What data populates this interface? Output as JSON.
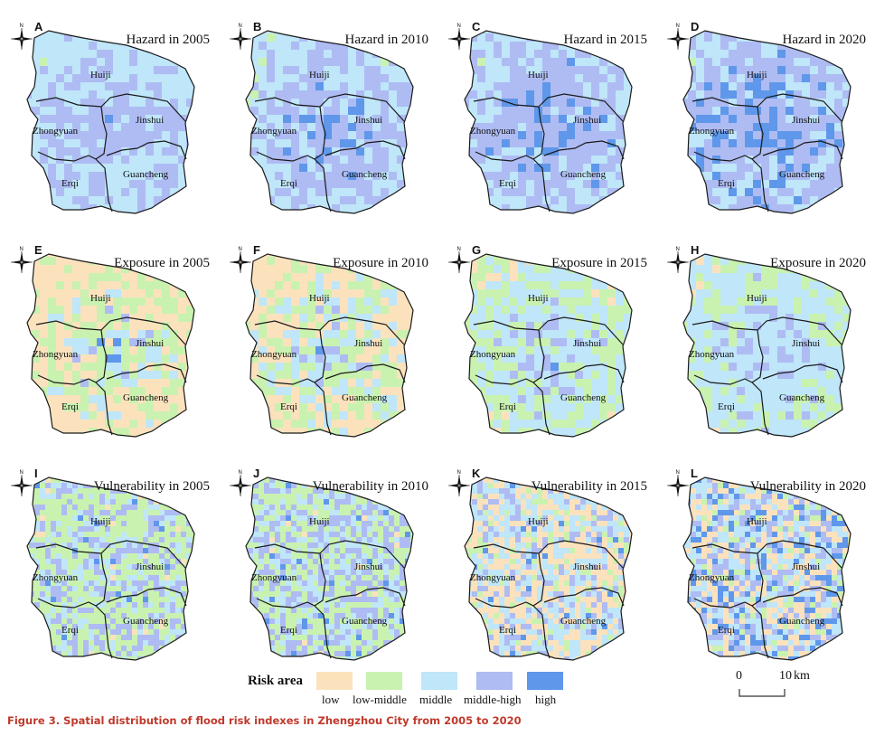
{
  "figure": {
    "caption": "Figure 3.  Spatial distribution of flood risk indexes in Zhengzhou City from 2005 to 2020",
    "north_label": "N",
    "districts": [
      "Huiji",
      "Jinshui",
      "Zhongyuan",
      "Guancheng",
      "Erqi"
    ],
    "panels": [
      {
        "letter": "A",
        "title": "Hazard in 2005",
        "mix": [
          0,
          0.03,
          0.45,
          0.37,
          0.15
        ]
      },
      {
        "letter": "B",
        "title": "Hazard in 2010",
        "mix": [
          0,
          0.08,
          0.35,
          0.35,
          0.22
        ]
      },
      {
        "letter": "C",
        "title": "Hazard in 2015",
        "mix": [
          0,
          0.03,
          0.32,
          0.35,
          0.3
        ]
      },
      {
        "letter": "D",
        "title": "Hazard in 2020",
        "mix": [
          0,
          0.02,
          0.3,
          0.33,
          0.35
        ]
      },
      {
        "letter": "E",
        "title": "Exposure in 2005",
        "mix": [
          0.45,
          0.22,
          0.13,
          0.1,
          0.1
        ]
      },
      {
        "letter": "F",
        "title": "Exposure in 2010",
        "mix": [
          0.38,
          0.22,
          0.17,
          0.11,
          0.12
        ]
      },
      {
        "letter": "G",
        "title": "Exposure in 2015",
        "mix": [
          0.12,
          0.3,
          0.3,
          0.2,
          0.08
        ]
      },
      {
        "letter": "H",
        "title": "Exposure in 2020",
        "mix": [
          0.06,
          0.26,
          0.36,
          0.26,
          0.06
        ]
      },
      {
        "letter": "I",
        "title": "Vulnerability in 2005",
        "mix": [
          0.02,
          0.48,
          0.18,
          0.3,
          0.02
        ]
      },
      {
        "letter": "J",
        "title": "Vulnerability in 2010",
        "mix": [
          0.02,
          0.4,
          0.22,
          0.33,
          0.03
        ]
      },
      {
        "letter": "K",
        "title": "Vulnerability in 2015",
        "mix": [
          0.38,
          0.1,
          0.32,
          0.17,
          0.03
        ]
      },
      {
        "letter": "L",
        "title": "Vulnerability in 2020",
        "mix": [
          0.28,
          0.1,
          0.26,
          0.22,
          0.14
        ]
      }
    ]
  },
  "legend": {
    "title": "Risk area",
    "classes": [
      {
        "label": "low",
        "color": "#fbe2bd"
      },
      {
        "label": "low-middle",
        "color": "#c9f2b0"
      },
      {
        "label": "middle",
        "color": "#bfe6f9"
      },
      {
        "label": "middle-high",
        "color": "#aebcf3"
      },
      {
        "label": "high",
        "color": "#5f97ea"
      }
    ]
  },
  "scale_bar": {
    "start": "0",
    "end": "10",
    "unit": "km"
  }
}
